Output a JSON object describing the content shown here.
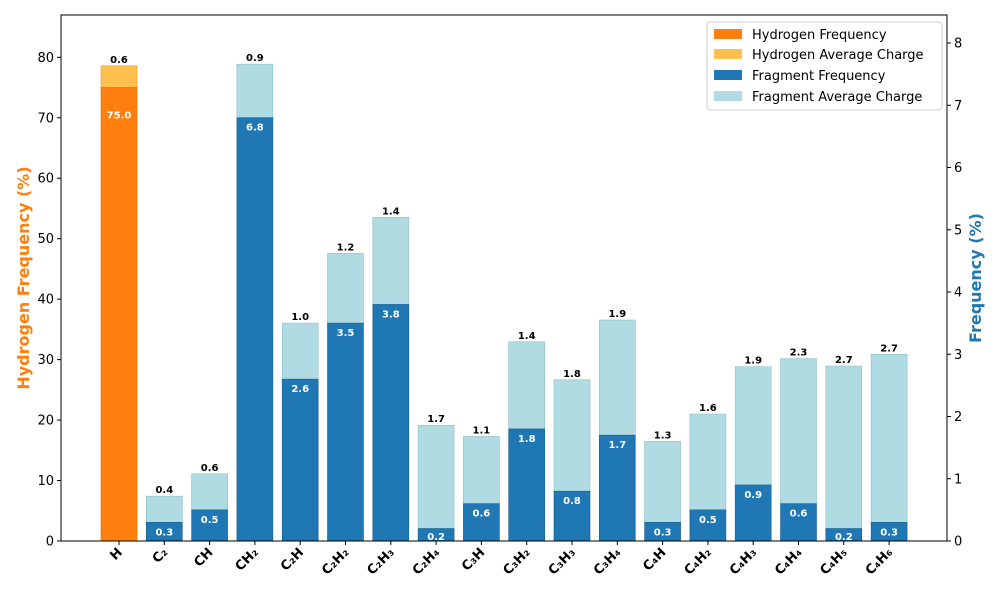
{
  "chart_data": {
    "type": "bar",
    "categories": [
      "H",
      "C₂",
      "CH",
      "CH₂",
      "C₂H",
      "C₂H₂",
      "C₂H₃",
      "C₂H₄",
      "C₃H",
      "C₃H₂",
      "C₃H₃",
      "C₃H₄",
      "C₄H",
      "C₄H₂",
      "C₄H₃",
      "C₄H₄",
      "C₄H₅",
      "C₄H₆"
    ],
    "ylabel": "Hydrogen Frequency (%)",
    "y2label": "Frequency (%)",
    "ylim": [
      0,
      87
    ],
    "y2lim": [
      0,
      8.45
    ],
    "yticks": [
      0,
      10,
      20,
      30,
      40,
      50,
      60,
      70,
      80
    ],
    "y2ticks": [
      0,
      1,
      2,
      3,
      4,
      5,
      6,
      7,
      8
    ],
    "hydrogen": {
      "frequency": 75.0,
      "frequency_label": "75.0",
      "average_charge": 0.6,
      "average_charge_label": "0.6",
      "stack_top": 78.6
    },
    "fragments": {
      "frequency": [
        0.3,
        0.5,
        6.8,
        2.6,
        3.5,
        3.8,
        0.2,
        0.6,
        1.8,
        0.8,
        1.7,
        0.3,
        0.5,
        0.9,
        0.6,
        0.2,
        0.3
      ],
      "frequency_labels": [
        "0.3",
        "0.5",
        "6.8",
        "2.6",
        "3.5",
        "3.8",
        "0.2",
        "0.6",
        "1.8",
        "0.8",
        "1.7",
        "0.3",
        "0.5",
        "0.9",
        "0.6",
        "0.2",
        "0.3"
      ],
      "average_charge": [
        0.4,
        0.6,
        0.9,
        1.0,
        1.2,
        1.4,
        1.7,
        1.1,
        1.4,
        1.8,
        1.9,
        1.3,
        1.6,
        1.9,
        2.3,
        2.7,
        2.7
      ],
      "average_charge_labels": [
        "0.4",
        "0.6",
        "0.9",
        "1.0",
        "1.2",
        "1.4",
        "1.7",
        "1.1",
        "1.4",
        "1.8",
        "1.9",
        "1.3",
        "1.6",
        "1.9",
        "2.3",
        "2.7",
        "2.7"
      ],
      "stack_top": [
        0.72,
        1.08,
        7.66,
        3.5,
        4.62,
        5.2,
        1.86,
        1.68,
        3.2,
        2.59,
        3.55,
        1.6,
        2.04,
        2.8,
        2.93,
        2.81,
        3.0
      ]
    },
    "legend": {
      "position": "top-right",
      "entries": [
        {
          "label": "Hydrogen Frequency",
          "color": "#ff7f0e"
        },
        {
          "label": "Hydrogen Average Charge",
          "color": "#ffc04d"
        },
        {
          "label": "Fragment Frequency",
          "color": "#1f77b4"
        },
        {
          "label": "Fragment Average Charge",
          "color": "#b0dbe3"
        }
      ]
    },
    "colors": {
      "hydrogen_frequency": "#ff7f0e",
      "hydrogen_average_charge": "#ffc04d",
      "fragment_frequency": "#1f77b4",
      "fragment_average_charge": "#b0dbe3",
      "left_axis_title": "#ff7f0e",
      "right_axis_title": "#1f77b4"
    },
    "grid": false
  }
}
